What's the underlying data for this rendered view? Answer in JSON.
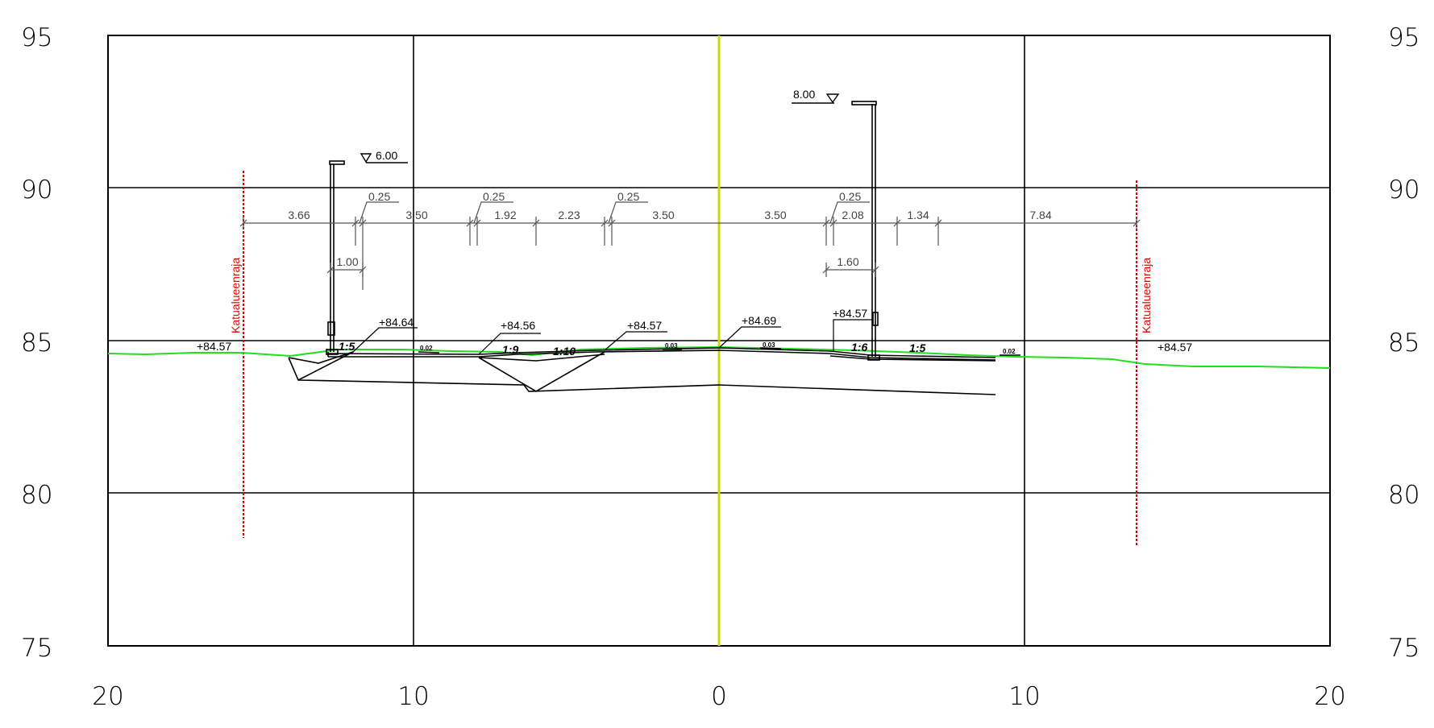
{
  "y_axis_left": [
    "95",
    "90",
    "85",
    "80",
    "75"
  ],
  "y_axis_right": [
    "95",
    "90",
    "85",
    "80",
    "75"
  ],
  "x_axis": [
    "20",
    "10",
    "0",
    "10",
    "20"
  ],
  "dimensions": {
    "row1": [
      "3.66",
      "3.50",
      "1.92",
      "2.23",
      "3.50",
      "3.50",
      "2.08",
      "1.34",
      "7.84"
    ],
    "row_top": [
      "0.25",
      "0.25",
      "0.25",
      "0.25"
    ],
    "row2": [
      "1.00",
      "1.60"
    ]
  },
  "light_heights": [
    "6.00",
    "8.00"
  ],
  "elevations": [
    "+84.57",
    "+84.64",
    "+84.56",
    "+84.57",
    "+84.69",
    "+84.57",
    "+84.57"
  ],
  "slopes": [
    "1:5",
    "1:9",
    "1:10",
    "1:6",
    "1:5"
  ],
  "crossfalls": [
    "0.02",
    "0.03",
    "0.03",
    "0.02"
  ],
  "boundary_label": "Katualueenraja",
  "colors": {
    "grid": "#000000",
    "centerline": "#d4d400",
    "terrain": "#22dd22",
    "boundary": "#e00000",
    "dimension": "#555555"
  }
}
